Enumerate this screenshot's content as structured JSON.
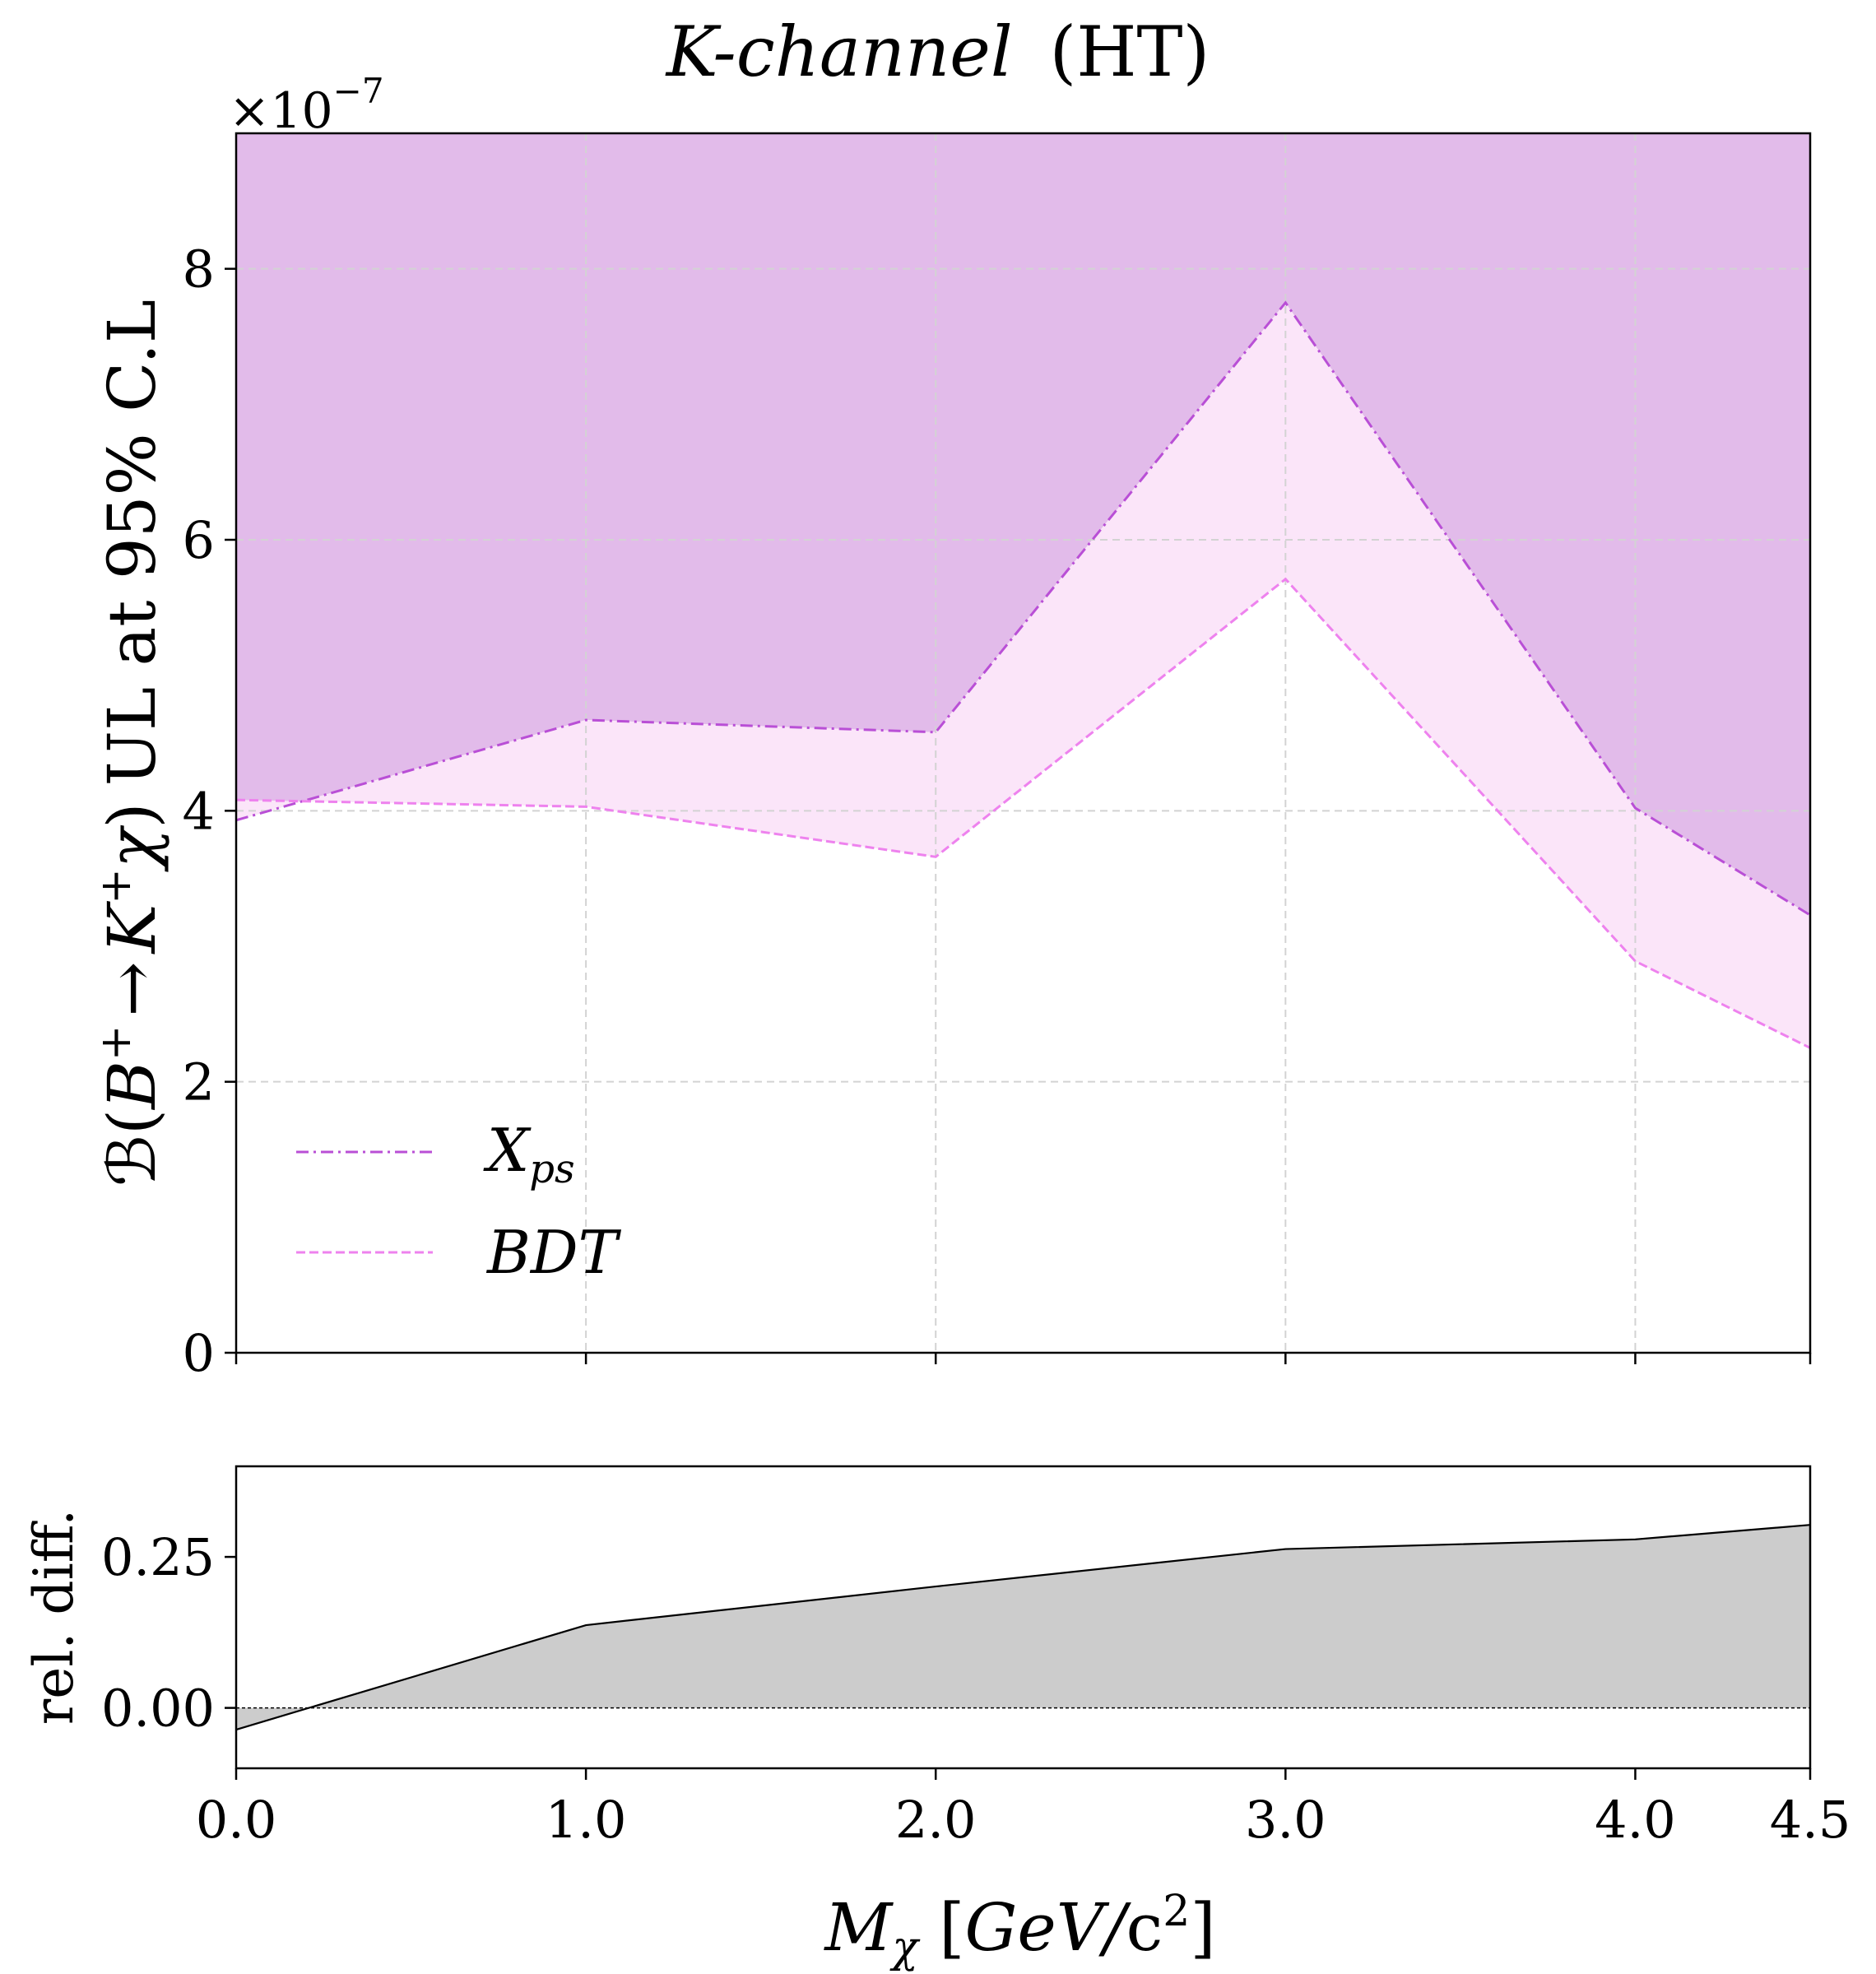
{
  "figure": {
    "title_italic": "K-channel",
    "title_suffix": "(HT)",
    "exponent_prefix": "×10",
    "exponent_power": "−7"
  },
  "chart_data": [
    {
      "type": "line",
      "panel": "top",
      "x": [
        0.0,
        1.0,
        2.0,
        3.0,
        4.0,
        4.5
      ],
      "series": [
        {
          "name": "X_ps",
          "label_main": "X",
          "label_sub": "ps",
          "values": [
            3.93,
            4.67,
            4.58,
            7.75,
            4.02,
            3.23
          ],
          "color": "#b94fd6",
          "dash": "dash-dot"
        },
        {
          "name": "BDT",
          "label_main": "BDT",
          "label_sub": "",
          "values": [
            4.08,
            4.03,
            3.66,
            5.71,
            2.89,
            2.25
          ],
          "color": "#ee82ee",
          "dash": "dashed"
        }
      ],
      "fill_above_color": "#e2bbea",
      "fill_between_color": "#fbe5f9",
      "y_multiplier": "1e-7",
      "ylim": [
        0,
        9
      ],
      "xlim": [
        0,
        4.5
      ],
      "yticks": [
        "0",
        "2",
        "4",
        "6",
        "8"
      ],
      "yticks_values": [
        0,
        2,
        4,
        6,
        8
      ],
      "xticks_values": [
        0,
        1,
        2,
        3,
        4,
        4.5
      ],
      "ylabel": "ℬ(B⁺ → K⁺χ) UL at 95% C.L",
      "ylabel_parts": {
        "prefix": "ℬ(",
        "b": "B",
        "arrow": "→",
        "k": "K",
        "chi": "χ",
        "close": ")",
        "suffix": "UL at 95% C.L"
      },
      "grid": true,
      "legend_position": "lower-left"
    },
    {
      "type": "area",
      "panel": "bottom",
      "x": [
        0.0,
        1.0,
        2.0,
        3.0,
        4.0,
        4.5
      ],
      "values": [
        -0.036,
        0.137,
        0.201,
        0.263,
        0.279,
        0.303
      ],
      "color": "#000000",
      "fill_color": "#cccccc",
      "ylim": [
        -0.1,
        0.4
      ],
      "xlim": [
        0,
        4.5
      ],
      "yticks": [
        "0.00",
        "0.25"
      ],
      "yticks_values": [
        0,
        0.25
      ],
      "xticks": [
        "0.0",
        "1.0",
        "2.0",
        "3.0",
        "4.0",
        "4.5"
      ],
      "xticks_values": [
        0,
        1,
        2,
        3,
        4,
        4.5
      ],
      "ylabel": "rel. diff.",
      "xlabel": "Mχ [GeV/c²]",
      "xlabel_parts": {
        "m": "M",
        "chi": "χ",
        "open": " [",
        "gev": "GeV/",
        "c": "c",
        "sq": "2",
        "close": "]"
      },
      "zero_line": true,
      "grid": false
    }
  ]
}
